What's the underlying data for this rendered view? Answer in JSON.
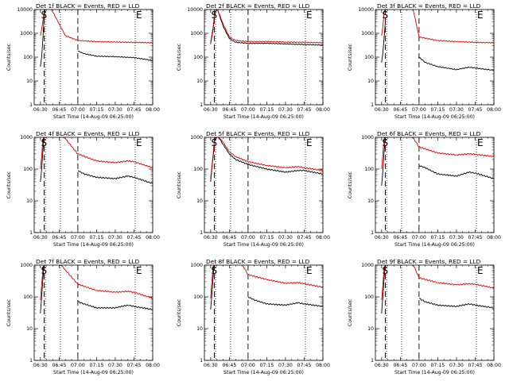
{
  "figure": {
    "ylabel": "Counts/sec",
    "xlabel": "Start Time (14-Aug-09 06:25:00)",
    "x_tick_labels": [
      "06:30",
      "06:45",
      "07:00",
      "07:15",
      "07:30",
      "07:45",
      "08:00"
    ],
    "y_tick_labels": [
      "1",
      "10",
      "100",
      "1000",
      "10000"
    ],
    "start_label": "S",
    "end_label": "E",
    "colors": {
      "events": "#000000",
      "lld": "#e00000",
      "axes": "#000000"
    }
  },
  "chart_data": [
    {
      "type": "line",
      "title": "Det 1f BLACK = Events, RED = LLD",
      "ylim": [
        1,
        10000
      ],
      "yscale": "log",
      "xlim_minutes": [
        0,
        95
      ],
      "markers": {
        "dotted": [
          "06:34",
          "06:46",
          "07:46",
          "08:00"
        ],
        "dashed": [
          "06:33",
          "07:00"
        ]
      },
      "series": [
        {
          "name": "Events",
          "color": "#000000",
          "x": [
            "06:30",
            "06:31",
            "06:33",
            "06:34",
            "06:35",
            "07:00",
            "07:00",
            "07:05",
            "07:15",
            "07:30",
            "07:45",
            "07:55",
            "08:00"
          ],
          "y": [
            40,
            100,
            5000,
            12000,
            12000,
            null,
            180,
            140,
            110,
            105,
            95,
            80,
            70
          ]
        },
        {
          "name": "LLD",
          "color": "#e00000",
          "x": [
            "06:30",
            "06:31",
            "06:33",
            "06:34",
            "06:38",
            "06:45",
            "06:50",
            "07:00",
            "07:15",
            "07:30",
            "07:45",
            "08:00"
          ],
          "y": [
            800,
            1500,
            8000,
            12000,
            12000,
            2500,
            800,
            500,
            450,
            430,
            420,
            400
          ]
        }
      ]
    },
    {
      "type": "line",
      "title": "Det 2f BLACK = Events, RED = LLD",
      "ylim": [
        1,
        10000
      ],
      "yscale": "log",
      "xlim_minutes": [
        0,
        95
      ],
      "markers": {
        "dotted": [
          "06:34",
          "06:46",
          "07:46",
          "08:00"
        ],
        "dashed": [
          "06:33",
          "07:00"
        ]
      },
      "series": [
        {
          "name": "Events",
          "color": "#000000",
          "x": [
            "06:30",
            "06:32",
            "06:33",
            "06:35",
            "06:40",
            "06:45",
            "06:50",
            "07:00",
            "07:15",
            "07:30",
            "07:45",
            "08:00"
          ],
          "y": [
            350,
            1500,
            5000,
            12000,
            2000,
            600,
            420,
            380,
            380,
            360,
            340,
            320
          ]
        },
        {
          "name": "LLD",
          "color": "#e00000",
          "x": [
            "06:30",
            "06:32",
            "06:33",
            "06:35",
            "06:40",
            "06:45",
            "06:50",
            "07:00",
            "07:15",
            "07:30",
            "07:45",
            "08:00"
          ],
          "y": [
            400,
            1800,
            6000,
            12000,
            2500,
            700,
            500,
            450,
            450,
            430,
            420,
            400
          ]
        }
      ]
    },
    {
      "type": "line",
      "title": "Det 3f BLACK = Events, RED = LLD",
      "ylim": [
        1,
        10000
      ],
      "yscale": "log",
      "xlim_minutes": [
        0,
        95
      ],
      "markers": {
        "dotted": [
          "06:34",
          "06:46",
          "07:46",
          "08:00"
        ],
        "dashed": [
          "06:33",
          "07:00"
        ]
      },
      "series": [
        {
          "name": "Events",
          "color": "#000000",
          "x": [
            "06:30",
            "06:31",
            "06:32",
            "06:33",
            "07:00",
            "07:00",
            "07:05",
            "07:15",
            "07:30",
            "07:40",
            "07:45",
            "08:00"
          ],
          "y": [
            60,
            150,
            700,
            3000,
            null,
            100,
            60,
            40,
            30,
            38,
            35,
            28
          ]
        },
        {
          "name": "LLD",
          "color": "#e00000",
          "x": [
            "06:30",
            "06:31",
            "06:32",
            "06:33",
            "06:45",
            "06:55",
            "07:00",
            "07:15",
            "07:30",
            "07:45",
            "08:00"
          ],
          "y": [
            800,
            2000,
            8000,
            12000,
            12000,
            12000,
            700,
            500,
            450,
            420,
            400
          ]
        }
      ]
    },
    {
      "type": "line",
      "title": "Det 4f BLACK = Events, RED = LLD",
      "ylim": [
        1,
        1000
      ],
      "yscale": "log",
      "xlim_minutes": [
        0,
        95
      ],
      "markers": {
        "dotted": [
          "06:34",
          "06:46",
          "07:46",
          "08:00"
        ],
        "dashed": [
          "06:33",
          "07:00"
        ]
      },
      "series": [
        {
          "name": "Events",
          "color": "#000000",
          "x": [
            "06:30",
            "06:31",
            "06:32",
            "06:33",
            "07:00",
            "07:00",
            "07:05",
            "07:15",
            "07:30",
            "07:40",
            "07:45",
            "08:00"
          ],
          "y": [
            40,
            100,
            400,
            1200,
            null,
            90,
            70,
            55,
            50,
            60,
            55,
            35
          ]
        },
        {
          "name": "LLD",
          "color": "#e00000",
          "x": [
            "06:30",
            "06:31",
            "06:32",
            "06:33",
            "06:45",
            "06:50",
            "07:00",
            "07:15",
            "07:30",
            "07:40",
            "07:45",
            "08:00"
          ],
          "y": [
            100,
            250,
            800,
            1200,
            1200,
            900,
            300,
            180,
            160,
            180,
            170,
            110
          ]
        }
      ]
    },
    {
      "type": "line",
      "title": "Det 5f BLACK = Events, RED = LLD",
      "ylim": [
        1,
        1000
      ],
      "yscale": "log",
      "xlim_minutes": [
        0,
        95
      ],
      "markers": {
        "dotted": [
          "06:34",
          "06:46",
          "07:46",
          "08:00"
        ],
        "dashed": [
          "06:33",
          "07:00"
        ]
      },
      "series": [
        {
          "name": "Events",
          "color": "#000000",
          "x": [
            "06:30",
            "06:32",
            "06:33",
            "06:35",
            "06:40",
            "06:45",
            "06:50",
            "07:00",
            "07:15",
            "07:30",
            "07:40",
            "07:45",
            "08:00"
          ],
          "y": [
            40,
            250,
            700,
            1200,
            600,
            300,
            200,
            140,
            100,
            80,
            90,
            90,
            70
          ]
        },
        {
          "name": "LLD",
          "color": "#e00000",
          "x": [
            "06:30",
            "06:32",
            "06:33",
            "06:35",
            "06:40",
            "06:45",
            "06:50",
            "07:00",
            "07:15",
            "07:30",
            "07:40",
            "07:45",
            "08:00"
          ],
          "y": [
            50,
            300,
            800,
            1200,
            700,
            350,
            250,
            170,
            130,
            110,
            120,
            110,
            90
          ]
        }
      ]
    },
    {
      "type": "line",
      "title": "Det 6f BLACK = Events, RED = LLD",
      "ylim": [
        1,
        1000
      ],
      "yscale": "log",
      "xlim_minutes": [
        0,
        95
      ],
      "markers": {
        "dotted": [
          "06:34",
          "06:46",
          "07:46",
          "08:00"
        ],
        "dashed": [
          "06:33",
          "07:00"
        ]
      },
      "series": [
        {
          "name": "Events",
          "color": "#000000",
          "x": [
            "06:30",
            "06:31",
            "06:32",
            "06:33",
            "07:00",
            "07:00",
            "07:05",
            "07:15",
            "07:30",
            "07:40",
            "07:45",
            "08:00"
          ],
          "y": [
            30,
            90,
            350,
            1100,
            null,
            130,
            110,
            70,
            60,
            80,
            75,
            50
          ]
        },
        {
          "name": "LLD",
          "color": "#e00000",
          "x": [
            "06:30",
            "06:31",
            "06:32",
            "06:33",
            "06:45",
            "06:55",
            "07:00",
            "07:15",
            "07:30",
            "07:40",
            "07:45",
            "08:00"
          ],
          "y": [
            100,
            300,
            900,
            1200,
            1200,
            1000,
            500,
            320,
            280,
            300,
            290,
            250
          ]
        }
      ]
    },
    {
      "type": "line",
      "title": "Det 7f BLACK = Events, RED = LLD",
      "ylim": [
        1,
        1000
      ],
      "yscale": "log",
      "xlim_minutes": [
        0,
        95
      ],
      "markers": {
        "dotted": [
          "06:34",
          "06:46",
          "07:46",
          "08:00"
        ],
        "dashed": [
          "06:33",
          "07:00"
        ]
      },
      "series": [
        {
          "name": "Events",
          "color": "#000000",
          "x": [
            "06:30",
            "06:31",
            "06:32",
            "06:33",
            "07:00",
            "07:00",
            "07:05",
            "07:15",
            "07:30",
            "07:40",
            "07:45",
            "08:00"
          ],
          "y": [
            30,
            100,
            400,
            1200,
            null,
            70,
            60,
            45,
            45,
            55,
            50,
            40
          ]
        },
        {
          "name": "LLD",
          "color": "#e00000",
          "x": [
            "06:30",
            "06:31",
            "06:32",
            "06:33",
            "06:45",
            "06:50",
            "07:00",
            "07:15",
            "07:30",
            "07:40",
            "07:45",
            "08:00"
          ],
          "y": [
            80,
            250,
            800,
            1200,
            1200,
            700,
            250,
            160,
            140,
            150,
            140,
            90
          ]
        }
      ]
    },
    {
      "type": "line",
      "title": "Det 8f BLACK = Events, RED = LLD",
      "ylim": [
        1,
        1000
      ],
      "yscale": "log",
      "xlim_minutes": [
        0,
        95
      ],
      "markers": {
        "dotted": [
          "06:34",
          "06:46",
          "07:46",
          "08:00"
        ],
        "dashed": [
          "06:33",
          "07:00"
        ]
      },
      "series": [
        {
          "name": "Events",
          "color": "#000000",
          "x": [
            "06:30",
            "06:31",
            "06:32",
            "06:33",
            "07:00",
            "07:00",
            "07:05",
            "07:15",
            "07:30",
            "07:40",
            "07:45",
            "08:00"
          ],
          "y": [
            40,
            120,
            450,
            1200,
            null,
            100,
            80,
            60,
            55,
            65,
            60,
            50
          ]
        },
        {
          "name": "LLD",
          "color": "#e00000",
          "x": [
            "06:30",
            "06:31",
            "06:32",
            "06:33",
            "06:45",
            "06:55",
            "07:00",
            "07:15",
            "07:30",
            "07:40",
            "07:45",
            "08:00"
          ],
          "y": [
            90,
            300,
            900,
            1200,
            1200,
            1100,
            500,
            350,
            270,
            280,
            260,
            200
          ]
        }
      ]
    },
    {
      "type": "line",
      "title": "Det 9f BLACK = Events, RED = LLD",
      "ylim": [
        1,
        1000
      ],
      "yscale": "log",
      "xlim_minutes": [
        0,
        95
      ],
      "markers": {
        "dotted": [
          "06:34",
          "06:46",
          "07:46",
          "08:00"
        ],
        "dashed": [
          "06:33",
          "07:00"
        ]
      },
      "series": [
        {
          "name": "Events",
          "color": "#000000",
          "x": [
            "06:30",
            "06:31",
            "06:32",
            "06:33",
            "07:00",
            "07:00",
            "07:05",
            "07:15",
            "07:30",
            "07:40",
            "07:45",
            "08:00"
          ],
          "y": [
            30,
            100,
            400,
            1200,
            null,
            90,
            70,
            55,
            50,
            60,
            55,
            45
          ]
        },
        {
          "name": "LLD",
          "color": "#e00000",
          "x": [
            "06:30",
            "06:31",
            "06:32",
            "06:33",
            "06:45",
            "06:55",
            "07:00",
            "07:15",
            "07:30",
            "07:40",
            "07:45",
            "08:00"
          ],
          "y": [
            80,
            250,
            800,
            1200,
            1200,
            1100,
            400,
            280,
            240,
            260,
            250,
            190
          ]
        }
      ]
    }
  ]
}
